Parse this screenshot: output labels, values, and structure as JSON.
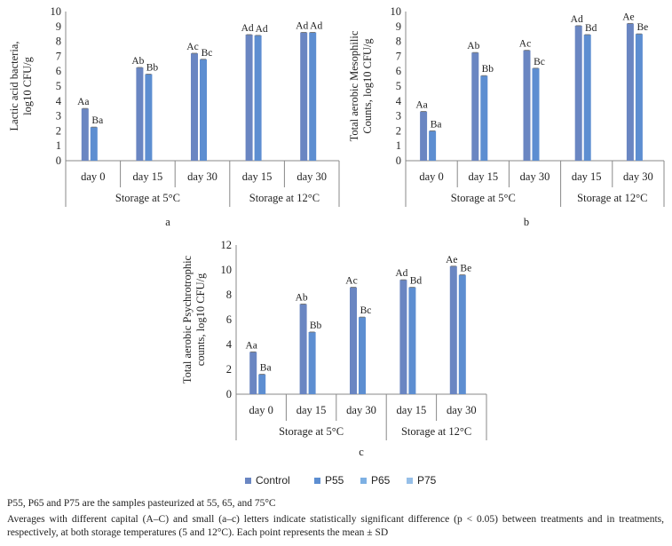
{
  "chart_data": [
    {
      "type": "bar",
      "panel_label": "a",
      "ylabel_lines": [
        "Lactic acid bacteria,",
        "log10 CFU/g"
      ],
      "ylim": [
        0,
        10
      ],
      "ytick_step": 1,
      "categories": [
        "day 0",
        "day 15",
        "day 30",
        "day 15",
        "day 30"
      ],
      "groups": [
        {
          "label": "Storage at 5°C",
          "span": [
            0,
            3
          ]
        },
        {
          "label": "Storage at 12°C",
          "span": [
            3,
            5
          ]
        }
      ],
      "series": [
        {
          "name": "Control",
          "values": [
            3.5,
            6.25,
            7.2,
            8.45,
            8.6
          ],
          "labels": [
            "Aa",
            "Ab",
            "Ac",
            "Ad",
            "Ad"
          ]
        },
        {
          "name": "P55",
          "values": [
            2.25,
            5.8,
            6.8,
            8.4,
            8.6
          ],
          "labels": [
            "Ba",
            "Bb",
            "Bc",
            "Ad",
            "Ad"
          ]
        }
      ]
    },
    {
      "type": "bar",
      "panel_label": "b",
      "ylabel_lines": [
        "Total aerobic Mesophilic",
        "Counts, log10 CFU/g"
      ],
      "ylim": [
        0,
        10
      ],
      "ytick_step": 1,
      "categories": [
        "day 0",
        "day 15",
        "day 30",
        "day 15",
        "day 30"
      ],
      "groups": [
        {
          "label": "Storage at 5°C",
          "span": [
            0,
            3
          ]
        },
        {
          "label": "Storage at 12°C",
          "span": [
            3,
            5
          ]
        }
      ],
      "series": [
        {
          "name": "Control",
          "values": [
            3.3,
            7.25,
            7.4,
            9.05,
            9.2
          ],
          "labels": [
            "Aa",
            "Ab",
            "Ac",
            "Ad",
            "Ae"
          ]
        },
        {
          "name": "P55",
          "values": [
            2.0,
            5.7,
            6.2,
            8.45,
            8.5
          ],
          "labels": [
            "Ba",
            "Bb",
            "Bc",
            "Bd",
            "Be"
          ]
        }
      ]
    },
    {
      "type": "bar",
      "panel_label": "c",
      "ylabel_lines": [
        "Total aerobic Psychrotrophic",
        "counts, log10 CFU/g"
      ],
      "ylim": [
        0,
        12
      ],
      "ytick_step": 2,
      "categories": [
        "day 0",
        "day 15",
        "day 30",
        "day 15",
        "day 30"
      ],
      "groups": [
        {
          "label": "Storage at 5°C",
          "span": [
            0,
            3
          ]
        },
        {
          "label": "Storage at 12°C",
          "span": [
            3,
            5
          ]
        }
      ],
      "series": [
        {
          "name": "Control",
          "values": [
            3.4,
            7.25,
            8.6,
            9.2,
            10.3
          ],
          "labels": [
            "Aa",
            "Ab",
            "Ac",
            "Ad",
            "Ae"
          ]
        },
        {
          "name": "P55",
          "values": [
            1.6,
            5.0,
            6.2,
            8.6,
            9.6
          ],
          "labels": [
            "Ba",
            "Bb",
            "Bc",
            "Bd",
            "Be"
          ]
        }
      ]
    }
  ],
  "legend": {
    "position": "bottom-center",
    "items": [
      {
        "name": "Control",
        "color": "#6a86c2"
      },
      {
        "name": "P55",
        "color": "#5d8ed1"
      },
      {
        "name": "P65",
        "color": "#7db0e3"
      },
      {
        "name": "P75",
        "color": "#96bfe8"
      }
    ]
  },
  "notes": {
    "line1": "P55, P65 and P75 are the samples pasteurized at 55, 65, and 75°C",
    "line2": "Averages with different capital (A–C) and small (a–c) letters indicate statistically significant difference (p < 0.05) between treatments and in treatments, respectively, at both storage temperatures (5 and 12°C). Each point represents the mean ± SD"
  }
}
